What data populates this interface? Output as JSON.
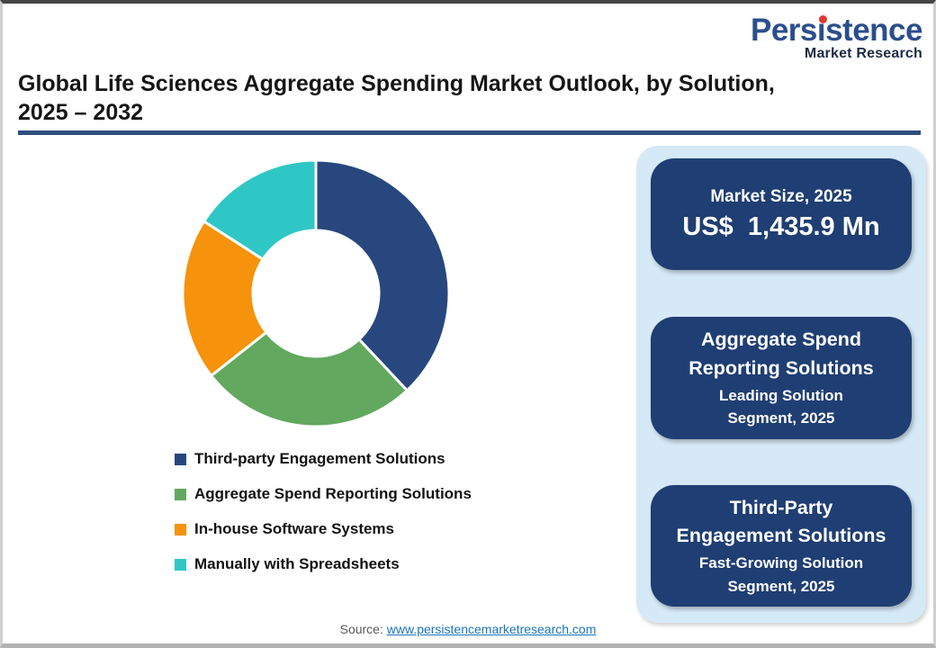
{
  "brand": {
    "name": "Persistence",
    "tagline": "Market Research",
    "name_color": "#2B4E8C",
    "tagline_color": "#1E2A45",
    "dot_color": "#E03A36"
  },
  "header": {
    "title_line1": "Global Life Sciences Aggregate Spending Market Outlook, by Solution,",
    "title_line2": "2025 – 2032",
    "rule_color": "#2E4E7E"
  },
  "chart_data": {
    "type": "pie",
    "subtype": "donut",
    "title": "Global Life Sciences Aggregate Spending Market Outlook, by Solution, 2025 – 2032",
    "value_unit": "percent share, estimated from arc angles (no data labels shown)",
    "start_angle_deg": 0,
    "clockwise": true,
    "inner_radius_ratio": 0.47,
    "legend_position": "bottom-left",
    "segments": [
      {
        "label": "Third-party Engagement Solutions",
        "value": 38.0,
        "color": "#27477E"
      },
      {
        "label": "Aggregate Spend Reporting Solutions",
        "value": 26.4,
        "color": "#62A85F"
      },
      {
        "label": "In-house Software Systems",
        "value": 19.7,
        "color": "#F6920B"
      },
      {
        "label": "Manually with Spreadsheets",
        "value": 15.9,
        "color": "#2FC7C5"
      }
    ]
  },
  "panel": {
    "background_color": "#D6E9F7",
    "card_color": "#1F3E73",
    "market_size_card": {
      "title": "Market Size, 2025",
      "value": "US$  1,435.9 Mn"
    },
    "leading_card": {
      "title_lines": [
        "Aggregate Spend",
        "Reporting Solutions"
      ],
      "subtitle_lines": [
        "Leading Solution",
        "Segment, 2025"
      ]
    },
    "fast_growing_card": {
      "title_lines": [
        "Third-Party",
        "Engagement Solutions"
      ],
      "subtitle_lines": [
        "Fast-Growing Solution",
        "Segment, 2025"
      ]
    }
  },
  "footer": {
    "source_label": "Source:",
    "source_link_text": "www.persistencemarketresearch.com",
    "link_color": "#1B75BB"
  }
}
